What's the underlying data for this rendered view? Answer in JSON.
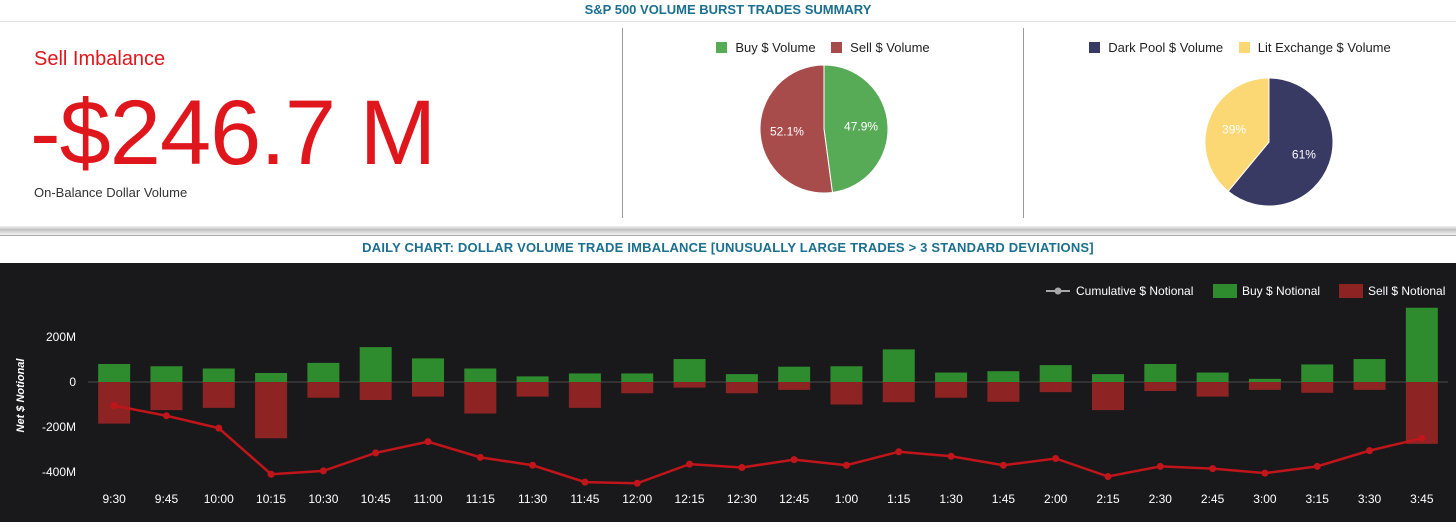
{
  "header": {
    "title": "S&P 500 VOLUME BURST TRADES SUMMARY"
  },
  "kpi": {
    "label": "Sell Imbalance",
    "value": "-$246.7 M",
    "subtitle": "On-Balance Dollar Volume",
    "color": "#e0161d"
  },
  "pie_buy_sell": {
    "legend": [
      {
        "name": "Buy $ Volume",
        "color": "#57ab57"
      },
      {
        "name": "Sell $ Volume",
        "color": "#a84b4b"
      }
    ],
    "slices": [
      {
        "name": "Buy $ Volume",
        "value": 47.9,
        "label": "47.9%",
        "color": "#57ab57"
      },
      {
        "name": "Sell $ Volume",
        "value": 52.1,
        "label": "52.1%",
        "color": "#a84b4b"
      }
    ]
  },
  "pie_venue": {
    "legend": [
      {
        "name": "Dark Pool $ Volume",
        "color": "#383a63"
      },
      {
        "name": "Lit Exchange $ Volume",
        "color": "#fbd874"
      }
    ],
    "slices": [
      {
        "name": "Dark Pool $ Volume",
        "value": 61,
        "label": "61%",
        "color": "#383a63"
      },
      {
        "name": "Lit Exchange $ Volume",
        "value": 39,
        "label": "39%",
        "color": "#fbd874"
      }
    ]
  },
  "chart_title": "DAILY CHART: DOLLAR VOLUME TRADE IMBALANCE [UNUSUALLY LARGE TRADES > 3 STANDARD DEVIATIONS]",
  "chart_data": {
    "type": "bar",
    "categories": [
      "9:30",
      "9:45",
      "10:00",
      "10:15",
      "10:30",
      "10:45",
      "11:00",
      "11:15",
      "11:30",
      "11:45",
      "12:00",
      "12:15",
      "12:30",
      "12:45",
      "1:00",
      "1:15",
      "1:30",
      "1:45",
      "2:00",
      "2:15",
      "2:30",
      "2:45",
      "3:00",
      "3:15",
      "3:30",
      "3:45"
    ],
    "ylabel": "Net $ Notional",
    "ylim": [
      -480,
      340
    ],
    "yticks": [
      200,
      0,
      -200,
      -400
    ],
    "ytick_labels": [
      "200M",
      "0",
      "-200M",
      "-400M"
    ],
    "legend_position": "top-right",
    "legend": [
      {
        "name": "Cumulative $ Notional",
        "color": "#a8a8a8",
        "kind": "line"
      },
      {
        "name": "Buy $ Notional",
        "color": "#2e8b2e",
        "kind": "bar"
      },
      {
        "name": "Sell $ Notional",
        "color": "#8e2323",
        "kind": "bar"
      }
    ],
    "series": [
      {
        "name": "Buy $ Notional",
        "type": "bar",
        "color": "#2e8b2e",
        "values": [
          80,
          70,
          60,
          40,
          85,
          155,
          105,
          60,
          25,
          38,
          38,
          102,
          35,
          68,
          70,
          145,
          42,
          48,
          75,
          35,
          80,
          42,
          14,
          78,
          102,
          330
        ]
      },
      {
        "name": "Sell $ Notional",
        "type": "bar",
        "color": "#8e2323",
        "values": [
          -185,
          -125,
          -115,
          -250,
          -70,
          -80,
          -65,
          -140,
          -65,
          -115,
          -50,
          -25,
          -50,
          -35,
          -100,
          -90,
          -70,
          -88,
          -45,
          -125,
          -40,
          -65,
          -35,
          -48,
          -35,
          -275
        ]
      },
      {
        "name": "Cumulative $ Notional",
        "type": "line",
        "color": "#c0151a",
        "values": [
          -105,
          -150,
          -205,
          -410,
          -395,
          -315,
          -265,
          -335,
          -370,
          -445,
          -450,
          -365,
          -380,
          -345,
          -370,
          -310,
          -330,
          -370,
          -340,
          -420,
          -375,
          -385,
          -405,
          -375,
          -305,
          -250
        ]
      }
    ]
  }
}
